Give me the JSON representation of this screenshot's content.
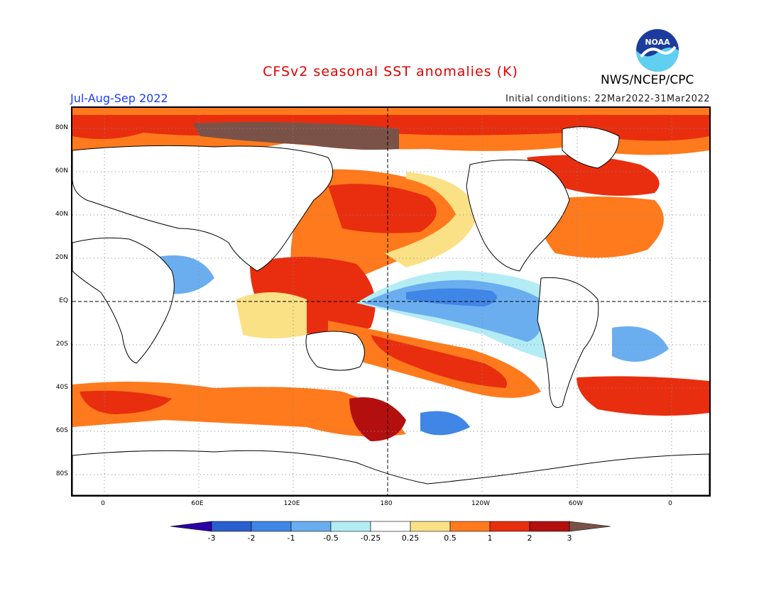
{
  "header": {
    "title": "CFSv2 seasonal SST anomalies (K)",
    "season": "Jul-Aug-Sep 2022",
    "initial_conditions": "Initial conditions: 22Mar2022-31Mar2022",
    "agency": "NWS/NCEP/CPC",
    "logo_text": "NOAA"
  },
  "map": {
    "lat_labels": [
      "80N",
      "60N",
      "40N",
      "20N",
      "EQ",
      "20S",
      "40S",
      "60S",
      "80S"
    ],
    "lon_labels": [
      "0",
      "60E",
      "120E",
      "180",
      "120W",
      "60W",
      "0"
    ]
  },
  "colorbar": {
    "labels": [
      "-3",
      "-2",
      "-1",
      "-0.5",
      "-0.25",
      "0.25",
      "0.5",
      "1",
      "2",
      "3"
    ],
    "colors": [
      "#2b00a8",
      "#2a5fd0",
      "#3f86e6",
      "#6aaef0",
      "#b4ecf5",
      "#ffffff",
      "#fbe186",
      "#ff7a1c",
      "#e82e0f",
      "#b40f0f",
      "#7b5248"
    ]
  },
  "colors": {
    "title": "#e00000",
    "season": "#1a3cff",
    "warm_strong": "#b40f0f",
    "warm": "#e82e0f",
    "warm_mid": "#ff7a1c",
    "warm_weak": "#fbe186",
    "cool_weak": "#b4ecf5",
    "cool": "#6aaef0",
    "cool_mid": "#3f86e6",
    "extreme_warm": "#7b5248"
  }
}
